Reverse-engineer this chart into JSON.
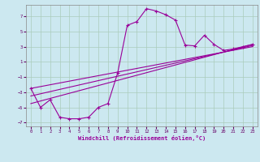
{
  "background_color": "#cce8f0",
  "grid_color": "#aaccbb",
  "line_color": "#990099",
  "xlabel": "Windchill (Refroidissement éolien,°C)",
  "xlim": [
    -0.5,
    23.5
  ],
  "ylim": [
    -7.5,
    8.5
  ],
  "xticks": [
    0,
    1,
    2,
    3,
    4,
    5,
    6,
    7,
    8,
    9,
    10,
    11,
    12,
    13,
    14,
    15,
    16,
    17,
    18,
    19,
    20,
    21,
    22,
    23
  ],
  "yticks": [
    -7,
    -5,
    -3,
    -1,
    1,
    3,
    5,
    7
  ],
  "curve_x": [
    0,
    1,
    2,
    3,
    4,
    5,
    6,
    7,
    8,
    9,
    10,
    11,
    12,
    13,
    14,
    15,
    16,
    17,
    18,
    19,
    20,
    21,
    22,
    23
  ],
  "curve_y": [
    -2.5,
    -5.0,
    -4.0,
    -6.3,
    -6.5,
    -6.5,
    -6.3,
    -5.0,
    -4.5,
    -0.5,
    5.8,
    6.3,
    8.0,
    7.7,
    7.2,
    6.5,
    3.2,
    3.1,
    4.5,
    3.3,
    2.5,
    2.7,
    3.0,
    3.3
  ],
  "line1_x": [
    0,
    23
  ],
  "line1_y": [
    -4.5,
    3.3
  ],
  "line2_x": [
    0,
    23
  ],
  "line2_y": [
    -2.5,
    3.0
  ],
  "line3_x": [
    0,
    23
  ],
  "line3_y": [
    -3.5,
    3.15
  ]
}
